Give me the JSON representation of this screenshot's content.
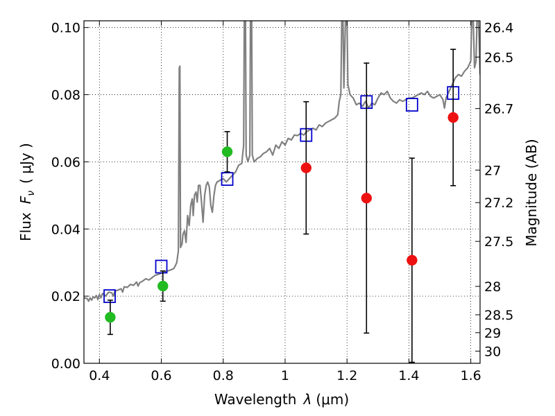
{
  "chart_data": {
    "type": "scatter",
    "xlabel_main": "Wavelength",
    "xlabel_symbol": "λ",
    "xlabel_unit": "(μm)",
    "ylabel_main": "Flux",
    "ylabel_symbol": "F",
    "ylabel_sub": "ν",
    "ylabel_unit": "( μJy )",
    "ylabel_right": "Magnitude (AB)",
    "xlim": [
      0.35,
      1.63
    ],
    "ylim": [
      0.0,
      0.102
    ],
    "x_ticks": [
      {
        "value": 0.4,
        "label": "0.4"
      },
      {
        "value": 0.6,
        "label": "0.6"
      },
      {
        "value": 0.8,
        "label": "0.8"
      },
      {
        "value": 1.0,
        "label": "1"
      },
      {
        "value": 1.2,
        "label": "1.2"
      },
      {
        "value": 1.4,
        "label": "1.4"
      },
      {
        "value": 1.6,
        "label": "1.6"
      }
    ],
    "y_ticks": [
      {
        "value": 0.0,
        "label": "0.00"
      },
      {
        "value": 0.02,
        "label": "0.02"
      },
      {
        "value": 0.04,
        "label": "0.04"
      },
      {
        "value": 0.06,
        "label": "0.06"
      },
      {
        "value": 0.08,
        "label": "0.08"
      },
      {
        "value": 0.1,
        "label": "0.10"
      }
    ],
    "mag_ticks": [
      {
        "value": 26.4,
        "label": "26.4"
      },
      {
        "value": 26.5,
        "label": "26.5"
      },
      {
        "value": 26.7,
        "label": "26.7"
      },
      {
        "value": 27.0,
        "label": "27"
      },
      {
        "value": 27.2,
        "label": "27.2"
      },
      {
        "value": 27.5,
        "label": "27.5"
      },
      {
        "value": 28.0,
        "label": "28"
      },
      {
        "value": 28.5,
        "label": "28.5"
      },
      {
        "value": 29.0,
        "label": "29"
      },
      {
        "value": 30.0,
        "label": "30"
      }
    ],
    "grid": true,
    "model_spectrum": {
      "color": "#808080",
      "points": [
        [
          0.35,
          0.0195
        ],
        [
          0.36,
          0.0193
        ],
        [
          0.365,
          0.0185
        ],
        [
          0.37,
          0.0195
        ],
        [
          0.375,
          0.0188
        ],
        [
          0.38,
          0.0198
        ],
        [
          0.385,
          0.0195
        ],
        [
          0.39,
          0.0202
        ],
        [
          0.395,
          0.019
        ],
        [
          0.4,
          0.0205
        ],
        [
          0.405,
          0.0195
        ],
        [
          0.41,
          0.0208
        ],
        [
          0.42,
          0.02
        ],
        [
          0.43,
          0.0212
        ],
        [
          0.44,
          0.021
        ],
        [
          0.445,
          0.02
        ],
        [
          0.45,
          0.0215
        ],
        [
          0.46,
          0.0218
        ],
        [
          0.47,
          0.0222
        ],
        [
          0.475,
          0.0212
        ],
        [
          0.48,
          0.0228
        ],
        [
          0.49,
          0.0226
        ],
        [
          0.5,
          0.0235
        ],
        [
          0.51,
          0.0232
        ],
        [
          0.52,
          0.0242
        ],
        [
          0.525,
          0.023
        ],
        [
          0.53,
          0.024
        ],
        [
          0.54,
          0.0245
        ],
        [
          0.55,
          0.0252
        ],
        [
          0.56,
          0.0248
        ],
        [
          0.57,
          0.0255
        ],
        [
          0.58,
          0.0262
        ],
        [
          0.59,
          0.0265
        ],
        [
          0.6,
          0.0268
        ],
        [
          0.61,
          0.027
        ],
        [
          0.62,
          0.0275
        ],
        [
          0.63,
          0.0278
        ],
        [
          0.64,
          0.0282
        ],
        [
          0.645,
          0.029
        ],
        [
          0.65,
          0.03
        ],
        [
          0.655,
          0.0335
        ],
        [
          0.658,
          0.088
        ],
        [
          0.66,
          0.0885
        ],
        [
          0.662,
          0.0345
        ],
        [
          0.667,
          0.0355
        ],
        [
          0.67,
          0.0385
        ],
        [
          0.675,
          0.0395
        ],
        [
          0.68,
          0.036
        ],
        [
          0.685,
          0.044
        ],
        [
          0.69,
          0.041
        ],
        [
          0.695,
          0.047
        ],
        [
          0.7,
          0.049
        ],
        [
          0.703,
          0.044
        ],
        [
          0.707,
          0.05
        ],
        [
          0.712,
          0.051
        ],
        [
          0.716,
          0.048
        ],
        [
          0.72,
          0.053
        ],
        [
          0.725,
          0.053
        ],
        [
          0.73,
          0.048
        ],
        [
          0.735,
          0.042
        ],
        [
          0.74,
          0.05
        ],
        [
          0.745,
          0.053
        ],
        [
          0.75,
          0.054
        ],
        [
          0.755,
          0.0525
        ],
        [
          0.76,
          0.047
        ],
        [
          0.765,
          0.045
        ],
        [
          0.77,
          0.05
        ],
        [
          0.775,
          0.053
        ],
        [
          0.78,
          0.054
        ],
        [
          0.79,
          0.0545
        ],
        [
          0.8,
          0.055
        ],
        [
          0.81,
          0.054
        ],
        [
          0.82,
          0.055
        ],
        [
          0.83,
          0.056
        ],
        [
          0.84,
          0.057
        ],
        [
          0.85,
          0.059
        ],
        [
          0.86,
          0.0595
        ],
        [
          0.866,
          0.065
        ],
        [
          0.868,
          0.102
        ],
        [
          0.872,
          0.102
        ],
        [
          0.874,
          0.062
        ],
        [
          0.88,
          0.06
        ],
        [
          0.886,
          0.062
        ],
        [
          0.888,
          0.102
        ],
        [
          0.892,
          0.102
        ],
        [
          0.894,
          0.062
        ],
        [
          0.9,
          0.06
        ],
        [
          0.91,
          0.061
        ],
        [
          0.92,
          0.0615
        ],
        [
          0.93,
          0.0625
        ],
        [
          0.94,
          0.063
        ],
        [
          0.95,
          0.064
        ],
        [
          0.96,
          0.062
        ],
        [
          0.97,
          0.065
        ],
        [
          0.98,
          0.064
        ],
        [
          0.99,
          0.066
        ],
        [
          1.0,
          0.065
        ],
        [
          1.01,
          0.067
        ],
        [
          1.02,
          0.0665
        ],
        [
          1.03,
          0.068
        ],
        [
          1.04,
          0.0678
        ],
        [
          1.05,
          0.0685
        ],
        [
          1.06,
          0.068
        ],
        [
          1.07,
          0.069
        ],
        [
          1.08,
          0.0695
        ],
        [
          1.09,
          0.07
        ],
        [
          1.1,
          0.0695
        ],
        [
          1.11,
          0.071
        ],
        [
          1.12,
          0.0705
        ],
        [
          1.13,
          0.0715
        ],
        [
          1.14,
          0.072
        ],
        [
          1.15,
          0.0725
        ],
        [
          1.16,
          0.073
        ],
        [
          1.17,
          0.074
        ],
        [
          1.175,
          0.078
        ],
        [
          1.18,
          0.08
        ],
        [
          1.183,
          0.102
        ],
        [
          1.187,
          0.102
        ],
        [
          1.19,
          0.082
        ],
        [
          1.195,
          0.102
        ],
        [
          1.2,
          0.102
        ],
        [
          1.203,
          0.083
        ],
        [
          1.21,
          0.08
        ],
        [
          1.22,
          0.079
        ],
        [
          1.23,
          0.077
        ],
        [
          1.24,
          0.0775
        ],
        [
          1.25,
          0.0765
        ],
        [
          1.26,
          0.078
        ],
        [
          1.27,
          0.076
        ],
        [
          1.28,
          0.0775
        ],
        [
          1.29,
          0.077
        ],
        [
          1.3,
          0.079
        ],
        [
          1.31,
          0.0805
        ],
        [
          1.32,
          0.08
        ],
        [
          1.33,
          0.081
        ],
        [
          1.34,
          0.079
        ],
        [
          1.35,
          0.078
        ],
        [
          1.36,
          0.0775
        ],
        [
          1.37,
          0.0785
        ],
        [
          1.38,
          0.078
        ],
        [
          1.39,
          0.0785
        ],
        [
          1.4,
          0.079
        ],
        [
          1.41,
          0.079
        ],
        [
          1.42,
          0.0795
        ],
        [
          1.43,
          0.08
        ],
        [
          1.44,
          0.0805
        ],
        [
          1.45,
          0.08
        ],
        [
          1.46,
          0.081
        ],
        [
          1.47,
          0.0795
        ],
        [
          1.48,
          0.079
        ],
        [
          1.49,
          0.0795
        ],
        [
          1.5,
          0.08
        ],
        [
          1.51,
          0.0785
        ],
        [
          1.515,
          0.076
        ],
        [
          1.52,
          0.079
        ],
        [
          1.53,
          0.081
        ],
        [
          1.54,
          0.083
        ],
        [
          1.55,
          0.085
        ],
        [
          1.56,
          0.086
        ],
        [
          1.57,
          0.0855
        ],
        [
          1.58,
          0.087
        ],
        [
          1.59,
          0.088
        ],
        [
          1.6,
          0.09
        ],
        [
          1.603,
          0.102
        ],
        [
          1.608,
          0.102
        ],
        [
          1.612,
          0.088
        ],
        [
          1.617,
          0.09
        ],
        [
          1.62,
          0.102
        ],
        [
          1.625,
          0.102
        ],
        [
          1.63,
          0.086
        ]
      ]
    },
    "series": [
      {
        "marker": "square-open",
        "color": "#0000cc",
        "points": [
          {
            "x": 0.433,
            "y": 0.02
          },
          {
            "x": 0.6,
            "y": 0.0288
          },
          {
            "x": 0.813,
            "y": 0.0549
          },
          {
            "x": 1.068,
            "y": 0.068
          },
          {
            "x": 1.263,
            "y": 0.0778
          },
          {
            "x": 1.41,
            "y": 0.077
          },
          {
            "x": 1.543,
            "y": 0.0805
          }
        ]
      },
      {
        "marker": "circle",
        "color": "#22bb22",
        "points": [
          {
            "x": 0.435,
            "y": 0.0137,
            "err_low": 0.0051,
            "err_high": 0.0051
          },
          {
            "x": 0.605,
            "y": 0.023,
            "err_low": 0.0045,
            "err_high": 0.0045
          },
          {
            "x": 0.813,
            "y": 0.063,
            "err_low": 0.006,
            "err_high": 0.006
          }
        ]
      },
      {
        "marker": "circle",
        "color": "#ee1111",
        "points": [
          {
            "x": 1.068,
            "y": 0.0582,
            "err_low": 0.0197,
            "err_high": 0.0197
          },
          {
            "x": 1.263,
            "y": 0.0492,
            "err_low": 0.0402,
            "err_high": 0.0402
          },
          {
            "x": 1.41,
            "y": 0.0307,
            "err_low": 0.0304,
            "err_high": 0.0304
          },
          {
            "x": 1.543,
            "y": 0.0732,
            "err_low": 0.0203,
            "err_high": 0.0203
          }
        ]
      }
    ]
  }
}
